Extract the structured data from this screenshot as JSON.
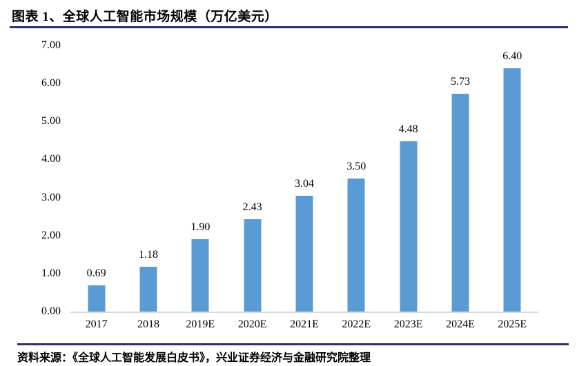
{
  "header": {
    "title": "图表 1、全球人工智能市场规模（万亿美元）"
  },
  "footer": {
    "source": "资料来源：《全球人工智能发展白皮书》，兴业证券经济与金融研究院整理"
  },
  "chart_data": {
    "type": "bar",
    "title": "全球人工智能市场规模（万亿美元）",
    "categories": [
      "2017",
      "2018",
      "2019E",
      "2020E",
      "2021E",
      "2022E",
      "2023E",
      "2024E",
      "2025E"
    ],
    "values": [
      0.69,
      1.18,
      1.9,
      2.43,
      3.04,
      3.5,
      4.48,
      5.73,
      6.4
    ],
    "value_labels": [
      "0.69",
      "1.18",
      "1.90",
      "2.43",
      "3.04",
      "3.50",
      "4.48",
      "5.73",
      "6.40"
    ],
    "xlabel": "",
    "ylabel": "",
    "ylim": [
      0,
      7
    ],
    "ytick_labels": [
      "0.00",
      "1.00",
      "2.00",
      "3.00",
      "4.00",
      "5.00",
      "6.00",
      "7.00"
    ],
    "grid": false,
    "legend": "none",
    "bar_color": "#5B9BD5"
  },
  "colors": {
    "rule": "#2e3263",
    "bar": "#5B9BD5",
    "axis_line": "#d9d9d9",
    "text": "#000000"
  }
}
